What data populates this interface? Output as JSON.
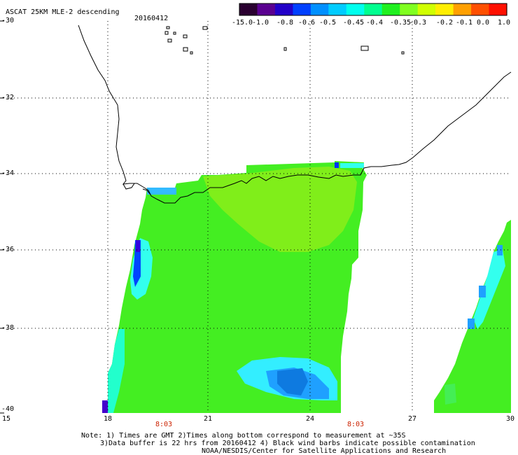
{
  "header": {
    "title": "ASCAT 25KM MLE-2 descending",
    "date": "20160412"
  },
  "colorbar": {
    "labels": [
      "-15.0",
      "-1.0",
      "-0.8",
      "-0.6",
      "-0.5",
      "-0.45",
      "-0.4",
      "-0.35",
      "-0.3",
      "-0.2",
      "-0.1",
      "0.0",
      "1.0"
    ],
    "colors": [
      "#2a0030",
      "#5a0090",
      "#2200c8",
      "#0040ff",
      "#0090ff",
      "#00ccff",
      "#00ffee",
      "#00ff90",
      "#20f020",
      "#80ff20",
      "#d0ff00",
      "#ffee00",
      "#ffa000",
      "#ff5000",
      "#ff1000"
    ]
  },
  "map": {
    "lat_labels": [
      "-30",
      "-32",
      "-34",
      "-36",
      "-38",
      "-40"
    ],
    "lon_labels": [
      "15",
      "18",
      "21",
      "24",
      "27",
      "30"
    ],
    "time_labels": [
      "8:03",
      "8:03"
    ]
  },
  "footer": {
    "line1": "Note: 1) Times are GMT 2)Times along bottom correspond to measurement at ~35S",
    "line2": "3)Data buffer is 22 hrs from 20160412 4) Black wind barbs indicate possible contamination",
    "line3": "NOAA/NESDIS/Center for Satellite Applications and Research"
  }
}
